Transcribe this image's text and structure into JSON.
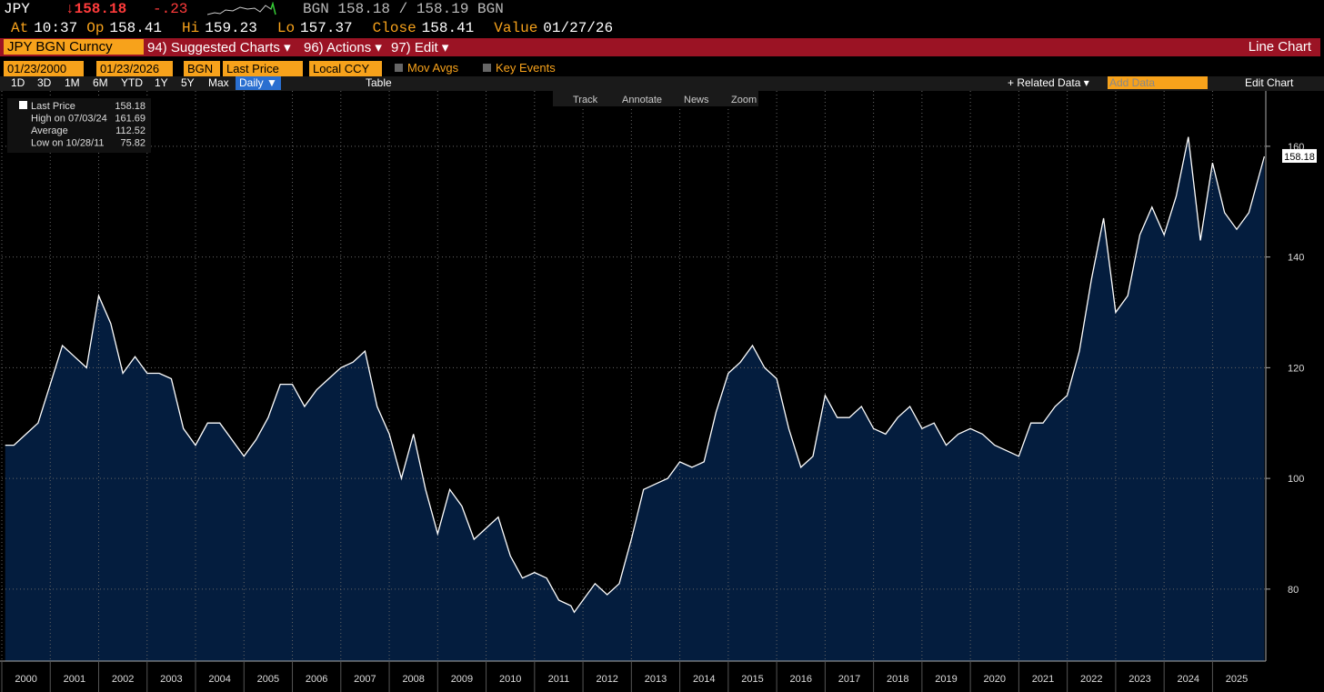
{
  "header": {
    "ticker": "JPY",
    "last": "↓158.18",
    "change": "-.23",
    "quote": "BGN 158.18 / 158.19 BGN",
    "row2": [
      {
        "label": "At",
        "value": "10:37"
      },
      {
        "label": "Op",
        "value": "158.41"
      },
      {
        "label": "Hi",
        "value": "159.23"
      },
      {
        "label": "Lo",
        "value": "157.37"
      },
      {
        "label": "Close",
        "value": "158.41"
      },
      {
        "label": "Value",
        "value": "01/27/26"
      }
    ]
  },
  "menu": {
    "security": "JPY BGN Curncy",
    "items": [
      "94) Suggested Charts ▾",
      "96) Actions ▾",
      "97) Edit ▾"
    ],
    "right": "Line Chart"
  },
  "options": {
    "start": "01/23/2000",
    "end": "01/23/2026",
    "source": "BGN",
    "field": "Last Price",
    "currency": "Local CCY",
    "checks": [
      "Mov Avgs",
      "Key Events"
    ]
  },
  "toolbar": {
    "periods": [
      "1D",
      "3D",
      "1M",
      "6M",
      "YTD",
      "1Y",
      "5Y",
      "Max"
    ],
    "frequency": "Daily ▼",
    "table": "Table",
    "related": "+ Related Data ▾",
    "add_data": "Add Data",
    "edit_chart": "Edit Chart",
    "tools": [
      "Track",
      "Annotate",
      "News",
      "Zoom"
    ]
  },
  "chart_data": {
    "type": "area",
    "legend": [
      {
        "label": "Last Price",
        "value": 158.18
      },
      {
        "label": "High on 07/03/24",
        "value": 161.69
      },
      {
        "label": "Average",
        "value": 112.52
      },
      {
        "label": "Low on 10/28/11",
        "value": 75.82
      }
    ],
    "series": [
      {
        "name": "Last Price",
        "color": "#ffffff",
        "fill": "#041d3e",
        "x": [
          2000.07,
          2000.25,
          2000.5,
          2000.75,
          2001,
          2001.25,
          2001.5,
          2001.75,
          2002,
          2002.25,
          2002.5,
          2002.75,
          2003,
          2003.25,
          2003.5,
          2003.75,
          2004,
          2004.25,
          2004.5,
          2004.75,
          2005,
          2005.25,
          2005.5,
          2005.75,
          2006,
          2006.25,
          2006.5,
          2006.75,
          2007,
          2007.25,
          2007.5,
          2007.75,
          2008,
          2008.25,
          2008.5,
          2008.75,
          2009,
          2009.25,
          2009.5,
          2009.75,
          2010,
          2010.25,
          2010.5,
          2010.75,
          2011,
          2011.25,
          2011.5,
          2011.75,
          2011.82,
          2012,
          2012.25,
          2012.5,
          2012.75,
          2013,
          2013.25,
          2013.5,
          2013.75,
          2014,
          2014.25,
          2014.5,
          2014.75,
          2015,
          2015.25,
          2015.5,
          2015.75,
          2016,
          2016.25,
          2016.5,
          2016.75,
          2017,
          2017.25,
          2017.5,
          2017.75,
          2018,
          2018.25,
          2018.5,
          2018.75,
          2019,
          2019.25,
          2019.5,
          2019.75,
          2020,
          2020.25,
          2020.5,
          2020.75,
          2021,
          2021.25,
          2021.5,
          2021.75,
          2022,
          2022.25,
          2022.5,
          2022.75,
          2023,
          2023.25,
          2023.5,
          2023.75,
          2024,
          2024.25,
          2024.5,
          2024.75,
          2025,
          2025.25,
          2025.5,
          2025.75,
          2026.07
        ],
        "values": [
          106,
          106,
          108,
          110,
          117,
          124,
          122,
          120,
          133,
          128,
          119,
          122,
          119,
          119,
          118,
          109,
          106,
          110,
          110,
          107,
          104,
          107,
          111,
          117,
          117,
          113,
          116,
          118,
          120,
          121,
          123,
          113,
          108,
          100,
          108,
          98,
          90,
          98,
          95,
          89,
          91,
          93,
          86,
          82,
          83,
          82,
          78,
          77,
          75.82,
          78,
          81,
          79,
          81,
          89,
          98,
          99,
          100,
          103,
          102,
          103,
          112,
          119,
          121,
          124,
          120,
          118,
          109,
          102,
          104,
          115,
          111,
          111,
          113,
          109,
          108,
          111,
          113,
          109,
          110,
          106,
          108,
          109,
          108,
          106,
          105,
          104,
          110,
          110,
          113,
          115,
          123,
          136,
          147,
          130,
          133,
          144,
          149,
          144,
          151,
          161.69,
          143,
          157,
          148,
          145,
          148,
          158.18
        ]
      }
    ],
    "xlim": [
      2000,
      2026.1
    ],
    "xticks": [
      2000,
      2001,
      2002,
      2003,
      2004,
      2005,
      2006,
      2007,
      2008,
      2009,
      2010,
      2011,
      2012,
      2013,
      2014,
      2015,
      2016,
      2017,
      2018,
      2019,
      2020,
      2021,
      2022,
      2023,
      2024,
      2025
    ],
    "ylim": [
      67,
      170
    ],
    "yticks": [
      80,
      100,
      120,
      140,
      160
    ],
    "grid": true
  }
}
